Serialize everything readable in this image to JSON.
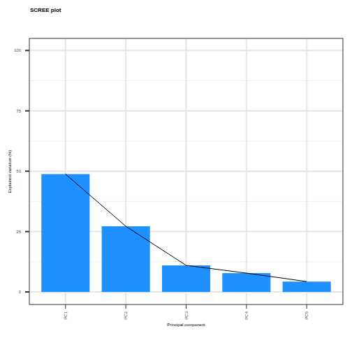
{
  "chart_data": {
    "type": "bar",
    "title": "SCREE plot",
    "x_label": "Principal component",
    "y_label": "Explained variation (%)",
    "categories": [
      "PC1",
      "PC2",
      "PC3",
      "PC4",
      "PC5"
    ],
    "values": [
      48.8,
      27.2,
      11.0,
      7.8,
      4.3
    ],
    "color": "#1e90ff",
    "line_style": "solid",
    "ylim": [
      -5.2,
      105
    ],
    "yticks": [
      0,
      25,
      50,
      75,
      100
    ],
    "grid": true
  }
}
